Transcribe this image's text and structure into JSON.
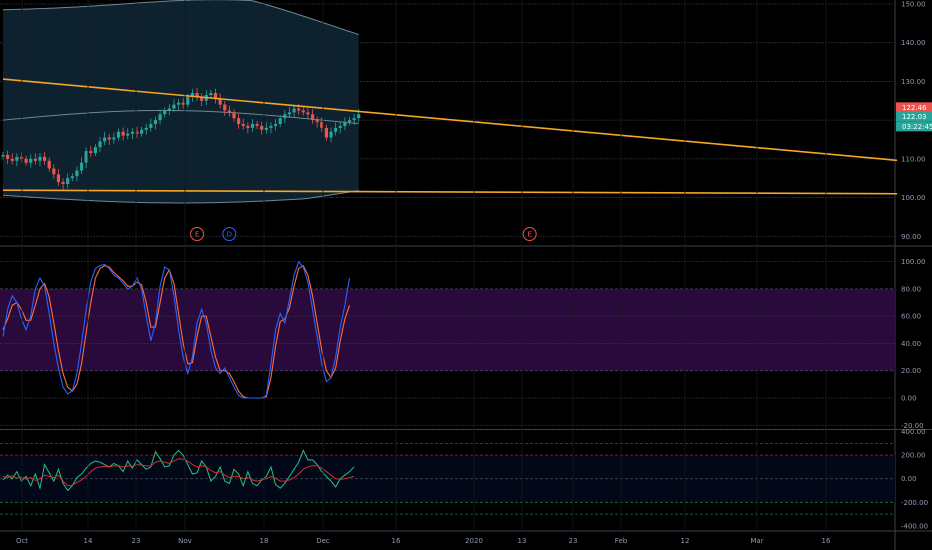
{
  "colors": {
    "background": "#000000",
    "grid": "#2b2f38",
    "axis_text": "#8f9bb0",
    "bull": "#26a69a",
    "bear": "#ef5350",
    "trendline": "#f5a623",
    "bb_line": "#6b8a96",
    "bb_fill": "#0e2430",
    "stoch_k": "#2962ff",
    "stoch_d": "#ff6d3a",
    "stoch_band": "#2a0a3c",
    "cci_line": "#26c281",
    "cci_ma": "#d32f2f",
    "cci_fill": "#020818",
    "price_badge": "#ef5350",
    "mid_badge": "#26a69a"
  },
  "chart_data": [
    {
      "type": "candlestick",
      "pane": "price",
      "ylim": [
        88,
        150
      ],
      "y_ticks": [
        "150.00",
        "140.00",
        "130.00",
        "120.00",
        "110.00",
        "100.00",
        "90.00"
      ],
      "x_ticks": [
        "Oct",
        "14",
        "23",
        "Nov",
        "18",
        "Dec",
        "16",
        "2020",
        "13",
        "23",
        "Feb",
        "12",
        "Mar",
        "16"
      ],
      "closes": [
        111,
        110,
        109.5,
        110.5,
        110,
        109,
        110,
        109.5,
        110.5,
        109.5,
        107.5,
        106,
        104,
        103.5,
        105,
        105.5,
        107,
        109,
        112,
        111.5,
        113,
        114.5,
        115.5,
        115,
        115.5,
        117,
        116,
        116.5,
        117,
        116.5,
        117.5,
        118,
        119,
        120,
        121.5,
        122.5,
        123,
        124,
        124.5,
        124,
        126,
        127,
        126,
        125,
        126.5,
        127,
        125.5,
        124,
        122.5,
        122,
        120.5,
        119,
        118.5,
        118,
        119,
        118.5,
        117.5,
        118,
        118.5,
        119,
        120.5,
        121.5,
        122,
        123,
        122.5,
        122,
        121.5,
        120,
        119.5,
        118,
        115.5,
        117,
        118,
        118.5,
        119.5,
        120,
        120.5,
        121.5
      ],
      "price_label": "122.46",
      "mid_label": "122.03",
      "countdown_label": "03:22:45",
      "bollinger": {
        "upper": 149,
        "lower": 100,
        "middle": 121
      },
      "trendlines": [
        {
          "from": [
            0,
            130.6
          ],
          "to": [
            160,
            109.6
          ]
        },
        {
          "from": [
            0,
            101.9
          ],
          "to": [
            160,
            101.0
          ]
        }
      ],
      "event_markers": [
        {
          "index": 42,
          "label": "E"
        },
        {
          "index": 49,
          "label": "D"
        },
        {
          "index": 114,
          "label": "E"
        }
      ]
    },
    {
      "type": "line",
      "pane": "stochastic",
      "ylim": [
        -22,
        110
      ],
      "y_ticks": [
        "100.00",
        "80.00",
        "60.00",
        "40.00",
        "20.00",
        "0.00",
        "-20.00"
      ],
      "band": [
        20,
        80
      ],
      "series": [
        {
          "values": [
            45,
            65,
            75,
            70,
            58,
            50,
            60,
            80,
            88,
            82,
            62,
            40,
            22,
            8,
            3,
            5,
            18,
            40,
            65,
            85,
            95,
            97,
            98,
            95,
            90,
            88,
            84,
            80,
            82,
            88,
            80,
            60,
            42,
            55,
            82,
            96,
            94,
            75,
            50,
            30,
            18,
            30,
            55,
            65,
            55,
            35,
            22,
            18,
            22,
            15,
            8,
            2,
            0,
            0,
            0,
            0,
            0,
            2,
            25,
            50,
            62,
            55,
            72,
            90,
            100,
            96,
            85,
            65,
            45,
            25,
            12,
            15,
            30,
            52,
            68,
            88
          ]
        },
        {
          "values": [
            50,
            58,
            68,
            70,
            65,
            57,
            57,
            68,
            80,
            84,
            74,
            55,
            35,
            18,
            8,
            5,
            10,
            25,
            48,
            70,
            88,
            95,
            97,
            96,
            92,
            89,
            86,
            82,
            82,
            85,
            83,
            70,
            52,
            52,
            70,
            88,
            94,
            84,
            62,
            40,
            25,
            26,
            45,
            60,
            60,
            45,
            30,
            20,
            20,
            18,
            12,
            5,
            1,
            0,
            0,
            0,
            0,
            1,
            15,
            38,
            56,
            58,
            66,
            82,
            95,
            97,
            90,
            75,
            55,
            35,
            20,
            15,
            22,
            42,
            58,
            68
          ]
        }
      ]
    },
    {
      "type": "line",
      "pane": "cci",
      "ylim": [
        -435,
        405
      ],
      "y_ticks": [
        "400.00",
        "200.00",
        "0.00",
        "-200.00",
        "-400.00"
      ],
      "levels": [
        300,
        -300
      ],
      "inner_band": [
        200,
        -200
      ],
      "series": [
        {
          "values": [
            -10,
            30,
            0,
            60,
            -20,
            20,
            -60,
            40,
            -80,
            120,
            50,
            -20,
            80,
            -40,
            -100,
            -60,
            10,
            40,
            90,
            130,
            150,
            140,
            120,
            100,
            130,
            110,
            60,
            150,
            90,
            160,
            120,
            80,
            100,
            230,
            170,
            100,
            110,
            200,
            240,
            200,
            120,
            40,
            50,
            150,
            100,
            -20,
            20,
            100,
            -20,
            -40,
            80,
            40,
            -60,
            60,
            -40,
            -60,
            -10,
            20,
            100,
            -50,
            -80,
            -40,
            20,
            80,
            140,
            240,
            160,
            160,
            120,
            60,
            20,
            -20,
            -70,
            0,
            30,
            60,
            100
          ]
        },
        {
          "values": [
            20,
            10,
            25,
            5,
            15,
            -5,
            10,
            -15,
            0,
            30,
            20,
            10,
            30,
            -20,
            -60,
            -55,
            -30,
            -10,
            20,
            60,
            90,
            100,
            105,
            100,
            110,
            110,
            100,
            110,
            105,
            120,
            115,
            110,
            108,
            140,
            150,
            140,
            130,
            150,
            170,
            165,
            150,
            120,
            100,
            110,
            100,
            70,
            50,
            60,
            30,
            10,
            20,
            20,
            0,
            10,
            -10,
            -20,
            -10,
            0,
            20,
            5,
            -20,
            -20,
            -10,
            10,
            40,
            80,
            100,
            110,
            110,
            90,
            60,
            30,
            0,
            -5,
            0,
            10,
            20
          ]
        }
      ]
    }
  ]
}
